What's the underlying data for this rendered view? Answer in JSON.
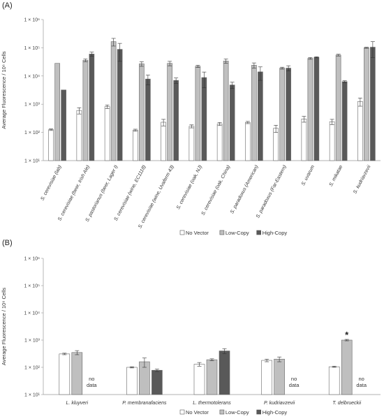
{
  "chart_data": [
    {
      "panel_label": "(A)",
      "type": "bar",
      "ylabel": "Average Fluorescence / 10⁶ Cells",
      "yscale": "log",
      "ylim": [
        10,
        1000000
      ],
      "yticks": [
        "1 × 10¹",
        "1 × 10²",
        "1 × 10³",
        "1 × 10⁴",
        "1 × 10⁵",
        "1 × 10⁶"
      ],
      "grid": false,
      "legend": "bottom",
      "categories": [
        "S. cerevisiae (lab)",
        "S. cerevisiae (beer, Irish Ale)",
        "S. pastorianus (beer, Lager I)",
        "S. cerevisiae (wine, EC1118)",
        "S. cerevisiae (wine, Uvaferm 43)",
        "S. cerevisiae (oak, NJ)",
        "S. cerevisiae (oak, China)",
        "S. paradoxus (American)",
        "S. paradoxus (Far-Eastern)",
        "S. uvarum",
        "S. mikatae",
        "S. kudriavzevii"
      ],
      "series": [
        {
          "name": "No Vector",
          "color": "#ffffff",
          "values": [
            125,
            600,
            820,
            120,
            230,
            165,
            200,
            225,
            140,
            300,
            240,
            1250
          ],
          "errors": [
            8,
            150,
            120,
            10,
            60,
            20,
            25,
            20,
            40,
            70,
            50,
            400
          ]
        },
        {
          "name": "Low-Copy",
          "color": "#bfbfbf",
          "values": [
            28000,
            36000,
            165000,
            27000,
            28000,
            22000,
            34000,
            24000,
            19000,
            42000,
            55000,
            100000
          ],
          "errors": [
            0,
            4000,
            50000,
            5000,
            5000,
            2000,
            6000,
            5000,
            1500,
            3000,
            4000,
            4000
          ]
        },
        {
          "name": "High-Copy",
          "color": "#595959",
          "values": [
            3200,
            60000,
            88000,
            7800,
            7000,
            8800,
            4800,
            14000,
            19000,
            46000,
            6300,
            105000
          ],
          "errors": [
            0,
            10000,
            55000,
            3000,
            1500,
            5000,
            1200,
            7000,
            4000,
            2000,
            500,
            60000
          ]
        }
      ]
    },
    {
      "panel_label": "(B)",
      "type": "bar",
      "ylabel": "Average Fluorescence / 10⁶ Cells",
      "yscale": "log",
      "ylim": [
        10,
        1000000
      ],
      "yticks": [
        "1 × 10¹",
        "1 × 10²",
        "1 × 10³",
        "1 × 10⁴",
        "1 × 10⁵",
        "1 × 10⁶"
      ],
      "grid": false,
      "legend": "bottom",
      "categories": [
        "L. kluyveri",
        "P. membranafaciens",
        "L. thermotolerans",
        "P. kudriavzevii",
        "T. delbrueckii"
      ],
      "series": [
        {
          "name": "No Vector",
          "color": "#ffffff",
          "values": [
            310,
            100,
            130,
            180,
            105
          ],
          "errors": [
            20,
            5,
            20,
            20,
            5
          ]
        },
        {
          "name": "Low-Copy",
          "color": "#bfbfbf",
          "values": [
            350,
            160,
            190,
            200,
            1000
          ],
          "errors": [
            60,
            60,
            15,
            40,
            60
          ]
        },
        {
          "name": "High-Copy",
          "color": "#595959",
          "values": [
            null,
            78,
            400,
            null,
            null
          ],
          "errors": [
            0,
            8,
            80,
            0,
            0
          ]
        }
      ],
      "annotations": {
        "no_data": "no data",
        "significance": "*",
        "significance_category": "T. delbrueckii"
      }
    }
  ],
  "legend_labels": [
    "No Vector",
    "Low-Copy",
    "High-Copy"
  ]
}
